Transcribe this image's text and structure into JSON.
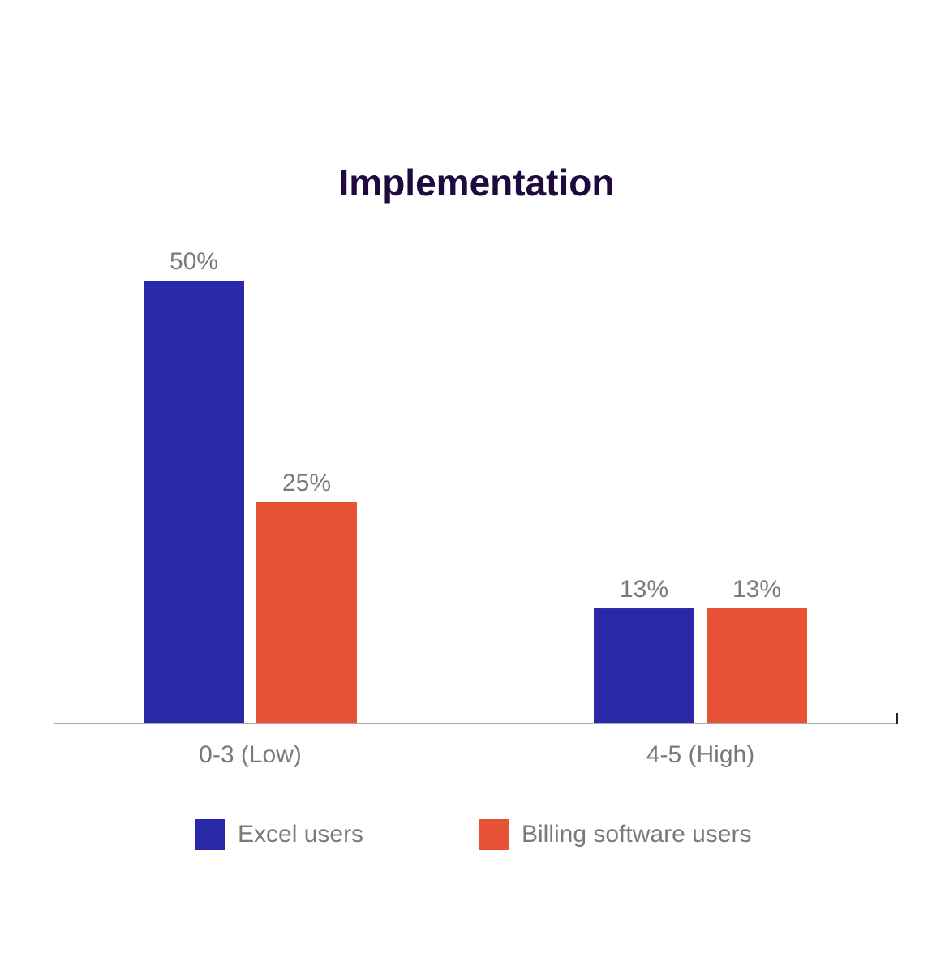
{
  "chart_data": {
    "type": "bar",
    "title": "Implementation",
    "categories": [
      "0-3 (Low)",
      "4-5 (High)"
    ],
    "series": [
      {
        "name": "Excel users",
        "values": [
          50,
          13
        ],
        "labels": [
          "50%",
          "13%"
        ],
        "color": "#2929a8"
      },
      {
        "name": "Billing software users",
        "values": [
          25,
          13
        ],
        "labels": [
          "25%",
          "13%"
        ],
        "color": "#e85234"
      }
    ],
    "ylim": [
      0,
      55
    ],
    "grid": false,
    "legend": "bottom",
    "unit": "%"
  }
}
